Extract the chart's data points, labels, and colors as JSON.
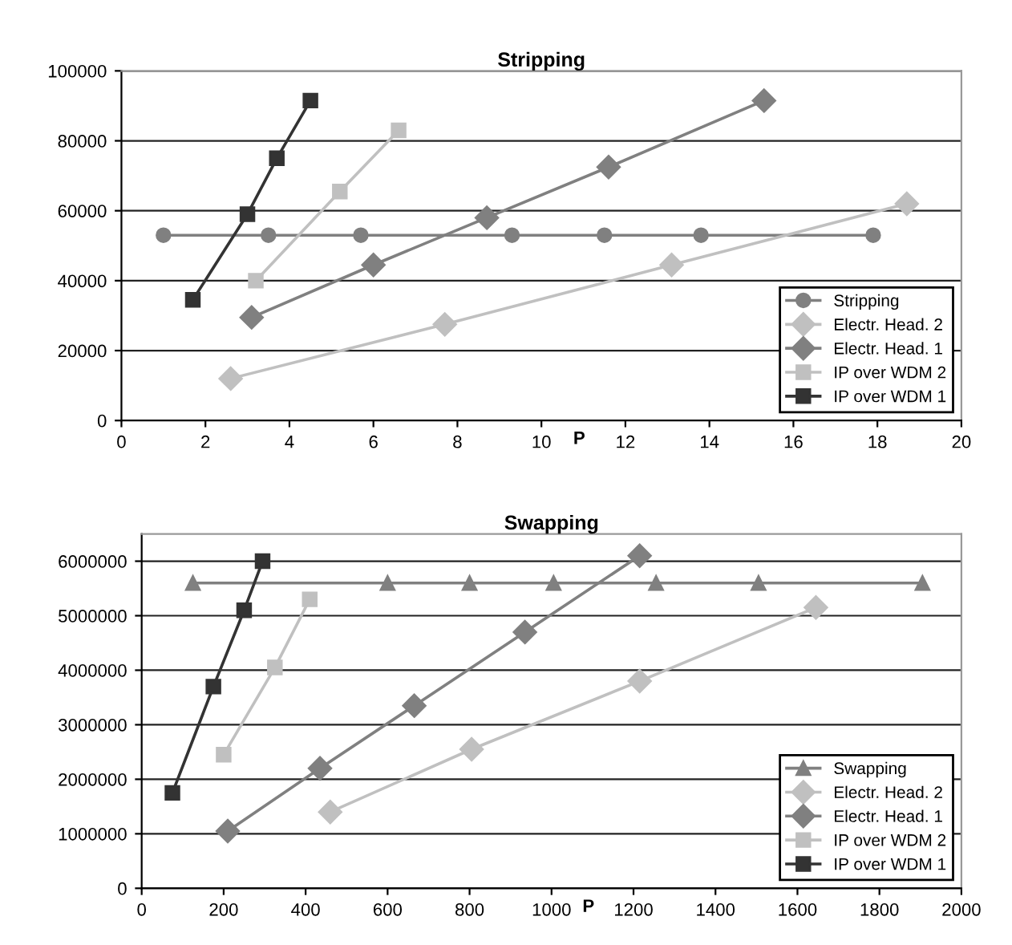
{
  "chart_data": [
    {
      "type": "line",
      "title": "Stripping",
      "xlabel": "P",
      "xlim": [
        0,
        20
      ],
      "xticks": [
        0,
        2,
        4,
        6,
        8,
        10,
        12,
        14,
        16,
        18,
        20
      ],
      "ylim": [
        0,
        100000
      ],
      "yticks": [
        0,
        20000,
        40000,
        60000,
        80000,
        100000
      ],
      "grid": "y",
      "legend": "bottom right",
      "line_style": "solid",
      "series": [
        {
          "name": "Stripping",
          "color": "#808080",
          "marker": "circle",
          "x": [
            1.0,
            3.5,
            5.7,
            9.3,
            11.5,
            13.8,
            17.9
          ],
          "values": [
            53000,
            53000,
            53000,
            53000,
            53000,
            53000,
            53000
          ]
        },
        {
          "name": "Electr. Head. 2",
          "color": "#c0c0c0",
          "marker": "diamond",
          "x": [
            2.6,
            7.7,
            13.1,
            18.7
          ],
          "values": [
            12000,
            27500,
            44500,
            62000
          ]
        },
        {
          "name": "Electr. Head. 1",
          "color": "#808080",
          "marker": "diamond",
          "x": [
            3.1,
            6.0,
            8.7,
            11.6,
            15.3
          ],
          "values": [
            29500,
            44500,
            58000,
            72500,
            91500
          ]
        },
        {
          "name": "IP over WDM 2",
          "color": "#c0c0c0",
          "marker": "square",
          "x": [
            3.2,
            5.2,
            6.6
          ],
          "values": [
            40000,
            65500,
            83000
          ]
        },
        {
          "name": "IP over WDM 1",
          "color": "#333333",
          "marker": "square",
          "x": [
            1.7,
            3.0,
            3.7,
            4.5
          ],
          "values": [
            34500,
            59000,
            75000,
            91500
          ]
        }
      ]
    },
    {
      "type": "line",
      "title": "Swapping",
      "xlabel": "P",
      "xlim": [
        0,
        2000
      ],
      "xticks": [
        0,
        200,
        400,
        600,
        800,
        1000,
        1200,
        1400,
        1600,
        1800,
        2000
      ],
      "ylim": [
        0,
        6500000
      ],
      "yticks": [
        0,
        1000000,
        2000000,
        3000000,
        4000000,
        5000000,
        6000000
      ],
      "grid": "y",
      "legend": "bottom right",
      "line_style": "solid",
      "series": [
        {
          "name": "Swapping",
          "color": "#808080",
          "marker": "triangle",
          "x": [
            125,
            600,
            800,
            1005,
            1255,
            1505,
            1905
          ],
          "values": [
            5600000,
            5600000,
            5600000,
            5600000,
            5600000,
            5600000,
            5600000
          ]
        },
        {
          "name": "Electr. Head. 2",
          "color": "#c0c0c0",
          "marker": "diamond",
          "x": [
            460,
            805,
            1215,
            1645
          ],
          "values": [
            1400000,
            2550000,
            3800000,
            5150000
          ]
        },
        {
          "name": "Electr. Head. 1",
          "color": "#808080",
          "marker": "diamond",
          "x": [
            210,
            435,
            665,
            935,
            1215
          ],
          "values": [
            1050000,
            2200000,
            3350000,
            4700000,
            6100000
          ]
        },
        {
          "name": "IP over WDM 2",
          "color": "#c0c0c0",
          "marker": "square",
          "x": [
            200,
            325,
            410
          ],
          "values": [
            2450000,
            4050000,
            5300000
          ]
        },
        {
          "name": "IP over WDM 1",
          "color": "#333333",
          "marker": "square",
          "x": [
            75,
            175,
            250,
            295
          ],
          "values": [
            1750000,
            3700000,
            5100000,
            6000000
          ]
        }
      ]
    }
  ]
}
